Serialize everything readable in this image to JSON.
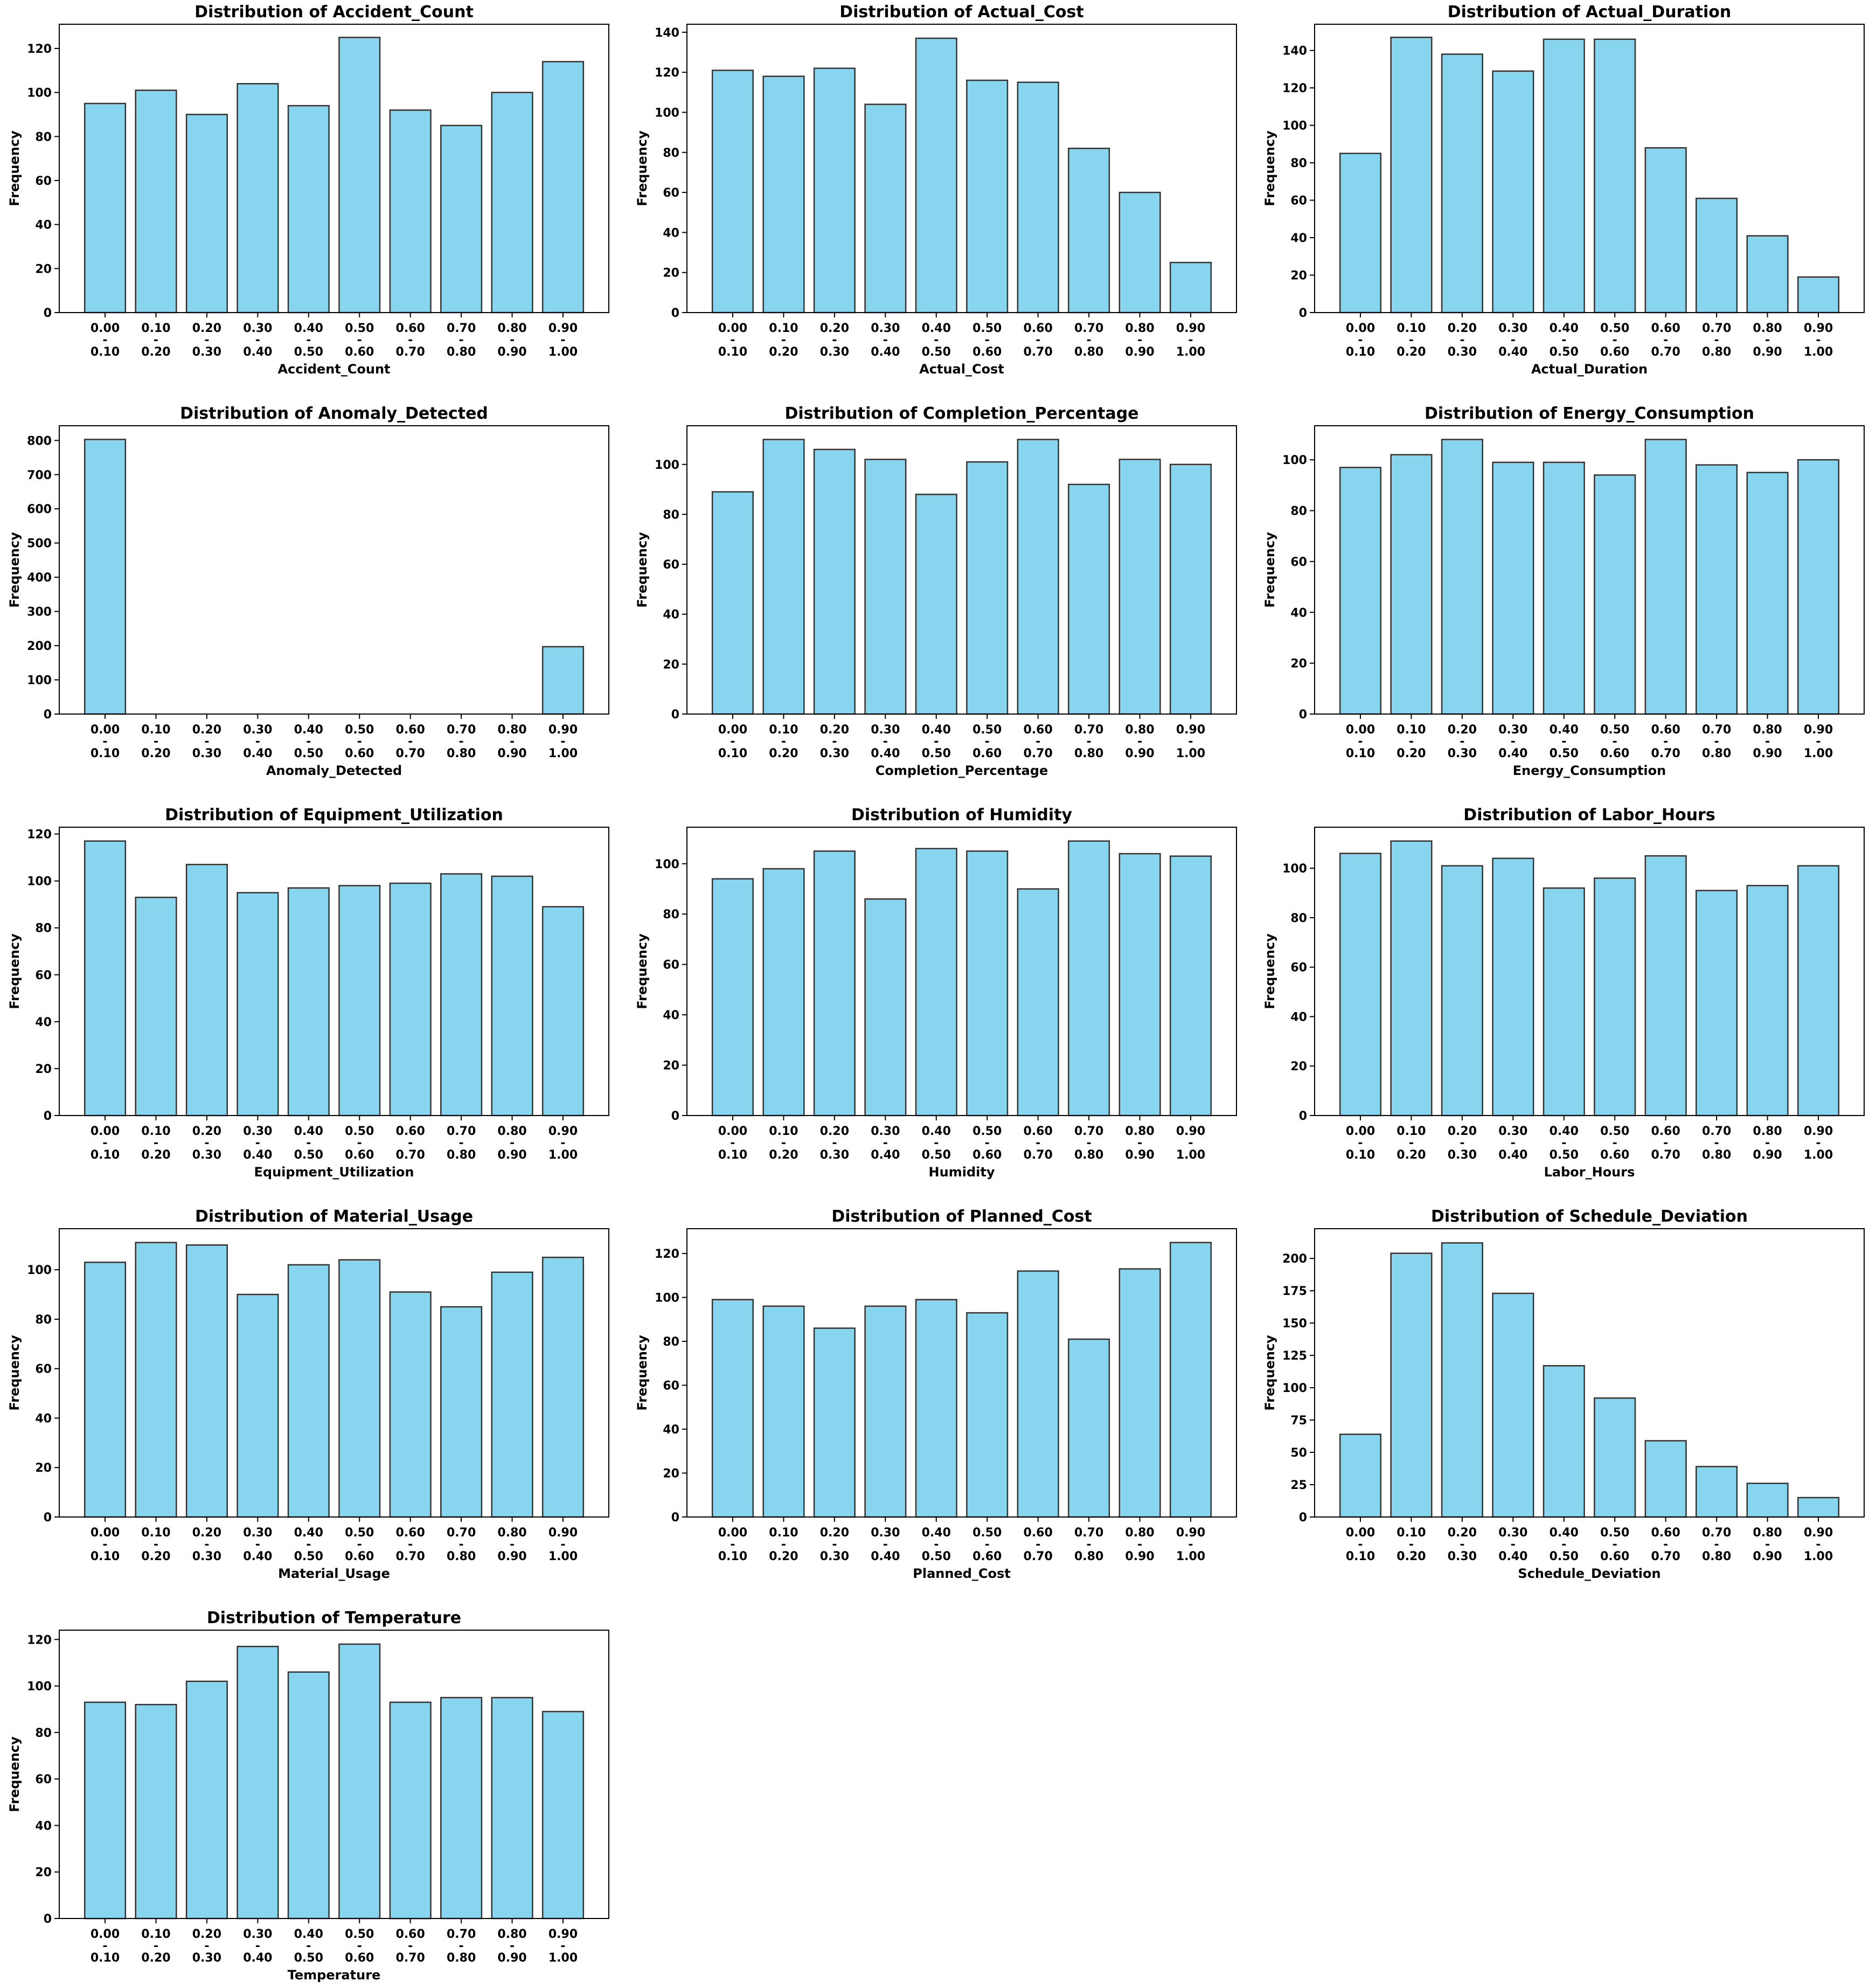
{
  "colors": {
    "bar_fill": "#87d5ee",
    "bar_edge": "#333333",
    "axis": "#000000",
    "background": "#ffffff"
  },
  "chart_data": [
    {
      "type": "bar",
      "title": "Distribution of Accident_Count",
      "xlabel": "Accident_Count",
      "ylabel": "Frequency",
      "categories": [
        "0.00 - 0.10",
        "0.10 - 0.20",
        "0.20 - 0.30",
        "0.30 - 0.40",
        "0.40 - 0.50",
        "0.50 - 0.60",
        "0.60 - 0.70",
        "0.70 - 0.80",
        "0.80 - 0.90",
        "0.90 - 1.00"
      ],
      "values": [
        95,
        101,
        90,
        104,
        94,
        125,
        92,
        85,
        100,
        114
      ],
      "ylim": [
        0,
        131
      ],
      "yticks": [
        0,
        20,
        40,
        60,
        80,
        100,
        120
      ]
    },
    {
      "type": "bar",
      "title": "Distribution of Actual_Cost",
      "xlabel": "Actual_Cost",
      "ylabel": "Frequency",
      "categories": [
        "0.00 - 0.10",
        "0.10 - 0.20",
        "0.20 - 0.30",
        "0.30 - 0.40",
        "0.40 - 0.50",
        "0.50 - 0.60",
        "0.60 - 0.70",
        "0.70 - 0.80",
        "0.80 - 0.90",
        "0.90 - 1.00"
      ],
      "values": [
        121,
        118,
        122,
        104,
        137,
        116,
        115,
        82,
        60,
        25
      ],
      "ylim": [
        0,
        144
      ],
      "yticks": [
        0,
        20,
        40,
        60,
        80,
        100,
        120,
        140
      ]
    },
    {
      "type": "bar",
      "title": "Distribution of Actual_Duration",
      "xlabel": "Actual_Duration",
      "ylabel": "Frequency",
      "categories": [
        "0.00 - 0.10",
        "0.10 - 0.20",
        "0.20 - 0.30",
        "0.30 - 0.40",
        "0.40 - 0.50",
        "0.50 - 0.60",
        "0.60 - 0.70",
        "0.70 - 0.80",
        "0.80 - 0.90",
        "0.90 - 1.00"
      ],
      "values": [
        85,
        147,
        138,
        129,
        146,
        146,
        88,
        61,
        41,
        19
      ],
      "ylim": [
        0,
        154
      ],
      "yticks": [
        0,
        20,
        40,
        60,
        80,
        100,
        120,
        140
      ]
    },
    {
      "type": "bar",
      "title": "Distribution of Anomaly_Detected",
      "xlabel": "Anomaly_Detected",
      "ylabel": "Frequency",
      "categories": [
        "0.00 - 0.10",
        "0.10 - 0.20",
        "0.20 - 0.30",
        "0.30 - 0.40",
        "0.40 - 0.50",
        "0.50 - 0.60",
        "0.60 - 0.70",
        "0.70 - 0.80",
        "0.80 - 0.90",
        "0.90 - 1.00"
      ],
      "values": [
        803,
        0,
        0,
        0,
        0,
        0,
        0,
        0,
        0,
        197
      ],
      "ylim": [
        0,
        843
      ],
      "yticks": [
        0,
        100,
        200,
        300,
        400,
        500,
        600,
        700,
        800
      ]
    },
    {
      "type": "bar",
      "title": "Distribution of Completion_Percentage",
      "xlabel": "Completion_Percentage",
      "ylabel": "Frequency",
      "categories": [
        "0.00 - 0.10",
        "0.10 - 0.20",
        "0.20 - 0.30",
        "0.30 - 0.40",
        "0.40 - 0.50",
        "0.50 - 0.60",
        "0.60 - 0.70",
        "0.70 - 0.80",
        "0.80 - 0.90",
        "0.90 - 1.00"
      ],
      "values": [
        89,
        110,
        106,
        102,
        88,
        101,
        110,
        92,
        102,
        100
      ],
      "ylim": [
        0,
        115.5
      ],
      "yticks": [
        0,
        20,
        40,
        60,
        80,
        100
      ]
    },
    {
      "type": "bar",
      "title": "Distribution of Energy_Consumption",
      "xlabel": "Energy_Consumption",
      "ylabel": "Frequency",
      "categories": [
        "0.00 - 0.10",
        "0.10 - 0.20",
        "0.20 - 0.30",
        "0.30 - 0.40",
        "0.40 - 0.50",
        "0.50 - 0.60",
        "0.60 - 0.70",
        "0.70 - 0.80",
        "0.80 - 0.90",
        "0.90 - 1.00"
      ],
      "values": [
        97,
        102,
        108,
        99,
        99,
        94,
        108,
        98,
        95,
        100
      ],
      "ylim": [
        0,
        113.4
      ],
      "yticks": [
        0,
        20,
        40,
        60,
        80,
        100
      ]
    },
    {
      "type": "bar",
      "title": "Distribution of Equipment_Utilization",
      "xlabel": "Equipment_Utilization",
      "ylabel": "Frequency",
      "categories": [
        "0.00 - 0.10",
        "0.10 - 0.20",
        "0.20 - 0.30",
        "0.30 - 0.40",
        "0.40 - 0.50",
        "0.50 - 0.60",
        "0.60 - 0.70",
        "0.70 - 0.80",
        "0.80 - 0.90",
        "0.90 - 1.00"
      ],
      "values": [
        117,
        93,
        107,
        95,
        97,
        98,
        99,
        103,
        102,
        89
      ],
      "ylim": [
        0,
        122.9
      ],
      "yticks": [
        0,
        20,
        40,
        60,
        80,
        100,
        120
      ]
    },
    {
      "type": "bar",
      "title": "Distribution of Humidity",
      "xlabel": "Humidity",
      "ylabel": "Frequency",
      "categories": [
        "0.00 - 0.10",
        "0.10 - 0.20",
        "0.20 - 0.30",
        "0.30 - 0.40",
        "0.40 - 0.50",
        "0.50 - 0.60",
        "0.60 - 0.70",
        "0.70 - 0.80",
        "0.80 - 0.90",
        "0.90 - 1.00"
      ],
      "values": [
        94,
        98,
        105,
        86,
        106,
        105,
        90,
        109,
        104,
        103
      ],
      "ylim": [
        0,
        114.5
      ],
      "yticks": [
        0,
        20,
        40,
        60,
        80,
        100
      ]
    },
    {
      "type": "bar",
      "title": "Distribution of Labor_Hours",
      "xlabel": "Labor_Hours",
      "ylabel": "Frequency",
      "categories": [
        "0.00 - 0.10",
        "0.10 - 0.20",
        "0.20 - 0.30",
        "0.30 - 0.40",
        "0.40 - 0.50",
        "0.50 - 0.60",
        "0.60 - 0.70",
        "0.70 - 0.80",
        "0.80 - 0.90",
        "0.90 - 1.00"
      ],
      "values": [
        106,
        111,
        101,
        104,
        92,
        96,
        105,
        91,
        93,
        101
      ],
      "ylim": [
        0,
        116.6
      ],
      "yticks": [
        0,
        20,
        40,
        60,
        80,
        100
      ]
    },
    {
      "type": "bar",
      "title": "Distribution of Material_Usage",
      "xlabel": "Material_Usage",
      "ylabel": "Frequency",
      "categories": [
        "0.00 - 0.10",
        "0.10 - 0.20",
        "0.20 - 0.30",
        "0.30 - 0.40",
        "0.40 - 0.50",
        "0.50 - 0.60",
        "0.60 - 0.70",
        "0.70 - 0.80",
        "0.80 - 0.90",
        "0.90 - 1.00"
      ],
      "values": [
        103,
        111,
        110,
        90,
        102,
        104,
        91,
        85,
        99,
        105
      ],
      "ylim": [
        0,
        116.6
      ],
      "yticks": [
        0,
        20,
        40,
        60,
        80,
        100
      ]
    },
    {
      "type": "bar",
      "title": "Distribution of Planned_Cost",
      "xlabel": "Planned_Cost",
      "ylabel": "Frequency",
      "categories": [
        "0.00 - 0.10",
        "0.10 - 0.20",
        "0.20 - 0.30",
        "0.30 - 0.40",
        "0.40 - 0.50",
        "0.50 - 0.60",
        "0.60 - 0.70",
        "0.70 - 0.80",
        "0.80 - 0.90",
        "0.90 - 1.00"
      ],
      "values": [
        99,
        96,
        86,
        96,
        99,
        93,
        112,
        81,
        113,
        125
      ],
      "ylim": [
        0,
        131.3
      ],
      "yticks": [
        0,
        20,
        40,
        60,
        80,
        100,
        120
      ]
    },
    {
      "type": "bar",
      "title": "Distribution of Schedule_Deviation",
      "xlabel": "Schedule_Deviation",
      "ylabel": "Frequency",
      "categories": [
        "0.00 - 0.10",
        "0.10 - 0.20",
        "0.20 - 0.30",
        "0.30 - 0.40",
        "0.40 - 0.50",
        "0.50 - 0.60",
        "0.60 - 0.70",
        "0.70 - 0.80",
        "0.80 - 0.90",
        "0.90 - 1.00"
      ],
      "values": [
        64,
        204,
        212,
        173,
        117,
        92,
        59,
        39,
        26,
        15
      ],
      "ylim": [
        0,
        223
      ],
      "yticks": [
        0,
        25,
        50,
        75,
        100,
        125,
        150,
        175,
        200
      ]
    },
    {
      "type": "bar",
      "title": "Distribution of Temperature",
      "xlabel": "Temperature",
      "ylabel": "Frequency",
      "categories": [
        "0.00 - 0.10",
        "0.10 - 0.20",
        "0.20 - 0.30",
        "0.30 - 0.40",
        "0.40 - 0.50",
        "0.50 - 0.60",
        "0.60 - 0.70",
        "0.70 - 0.80",
        "0.80 - 0.90",
        "0.90 - 1.00"
      ],
      "values": [
        93,
        92,
        102,
        117,
        106,
        118,
        93,
        95,
        95,
        89
      ],
      "ylim": [
        0,
        124
      ],
      "yticks": [
        0,
        20,
        40,
        60,
        80,
        100,
        120
      ]
    }
  ]
}
